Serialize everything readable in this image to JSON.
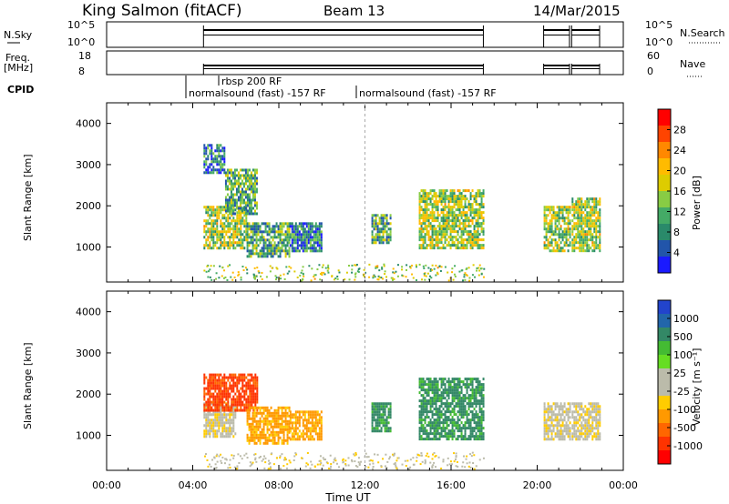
{
  "header": {
    "station": "King Salmon (fitACF)",
    "beam": "Beam 13",
    "date": "14/Mar/2015"
  },
  "top_panels": {
    "nsky_label": "N.Sky",
    "nsky_ticks": [
      "10^5",
      "10^0"
    ],
    "nsearch_label": "N.Search",
    "nsearch_ticks": [
      "10^5",
      "10^0"
    ],
    "freq_label": "Freq.",
    "freq_unit": "[MHz]",
    "freq_ticks": [
      "18",
      "8"
    ],
    "nave_label": "Nave",
    "nave_ticks": [
      "60",
      "0"
    ],
    "cpid_label": "CPID",
    "cpid_entries": [
      "rbsp 200 RF",
      "normalsound (fast) -157 RF",
      "normalsound (fast) -157 RF"
    ]
  },
  "power_colorbar": {
    "label": "Power [dB]",
    "ticks": [
      "28",
      "24",
      "20",
      "16",
      "12",
      "8",
      "4"
    ],
    "colors": [
      "#ff0000",
      "#ff4400",
      "#ff8800",
      "#ffbb00",
      "#ddcc00",
      "#88cc44",
      "#44aa66",
      "#2a8a6a",
      "#2255aa",
      "#1a1aff"
    ]
  },
  "velocity_colorbar": {
    "label": "Velocity [m s⁻¹]",
    "ticks": [
      "1000",
      "500",
      "100",
      "25",
      "-25",
      "-100",
      "-500",
      "-1000"
    ],
    "colors": [
      "#2244cc",
      "#2266aa",
      "#338866",
      "#44bb33",
      "#66dd22",
      "#bbbbaa",
      "#bbbbaa",
      "#ffcc00",
      "#ff9900",
      "#ff6600",
      "#ff3300",
      "#ff0000"
    ]
  },
  "chart_data": [
    {
      "type": "heatmap",
      "panel": "power",
      "ylabel": "Slant Range [km]",
      "yticks": [
        1000,
        2000,
        3000,
        4000
      ],
      "ylim": [
        150,
        4500
      ],
      "xlim": [
        0,
        24
      ],
      "regions": [
        {
          "t": [
            4.5,
            6.5
          ],
          "r": [
            1000,
            2000
          ],
          "value": 16
        },
        {
          "t": [
            5.5,
            7.0
          ],
          "r": [
            1800,
            2900
          ],
          "value": 12
        },
        {
          "t": [
            4.5,
            5.5
          ],
          "r": [
            2800,
            3500
          ],
          "value": 8
        },
        {
          "t": [
            6.5,
            8.5
          ],
          "r": [
            800,
            1600
          ],
          "value": 12
        },
        {
          "t": [
            8.5,
            10.0
          ],
          "r": [
            900,
            1600
          ],
          "value": 8
        },
        {
          "t": [
            12.3,
            13.2
          ],
          "r": [
            1100,
            1800
          ],
          "value": 12
        },
        {
          "t": [
            14.5,
            17.5
          ],
          "r": [
            1000,
            2400
          ],
          "value": 16
        },
        {
          "t": [
            20.3,
            21.5
          ],
          "r": [
            900,
            2000
          ],
          "value": 16
        },
        {
          "t": [
            21.6,
            22.9
          ],
          "r": [
            900,
            2200
          ],
          "value": 16
        }
      ]
    },
    {
      "type": "heatmap",
      "panel": "velocity",
      "ylabel": "Slant Range [km]",
      "yticks": [
        1000,
        2000,
        3000,
        4000
      ],
      "ylim": [
        150,
        4500
      ],
      "xlim": [
        0,
        24
      ],
      "xlabel": "Time UT",
      "xticks": [
        "00:00",
        "04:00",
        "08:00",
        "12:00",
        "16:00",
        "20:00",
        "00:00"
      ],
      "regions": [
        {
          "t": [
            4.5,
            6.0
          ],
          "r": [
            1000,
            1800
          ],
          "value": -25
        },
        {
          "t": [
            4.5,
            7.0
          ],
          "r": [
            1600,
            2500
          ],
          "value": -500
        },
        {
          "t": [
            6.5,
            8.5
          ],
          "r": [
            800,
            1700
          ],
          "value": -100
        },
        {
          "t": [
            8.5,
            10.0
          ],
          "r": [
            900,
            1600
          ],
          "value": -100
        },
        {
          "t": [
            12.3,
            13.2
          ],
          "r": [
            1100,
            1800
          ],
          "value": 100
        },
        {
          "t": [
            14.5,
            17.5
          ],
          "r": [
            900,
            2400
          ],
          "value": 100
        },
        {
          "t": [
            20.3,
            21.5
          ],
          "r": [
            900,
            1800
          ],
          "value": -25
        },
        {
          "t": [
            21.6,
            22.9
          ],
          "r": [
            900,
            1800
          ],
          "value": -25
        }
      ]
    }
  ]
}
